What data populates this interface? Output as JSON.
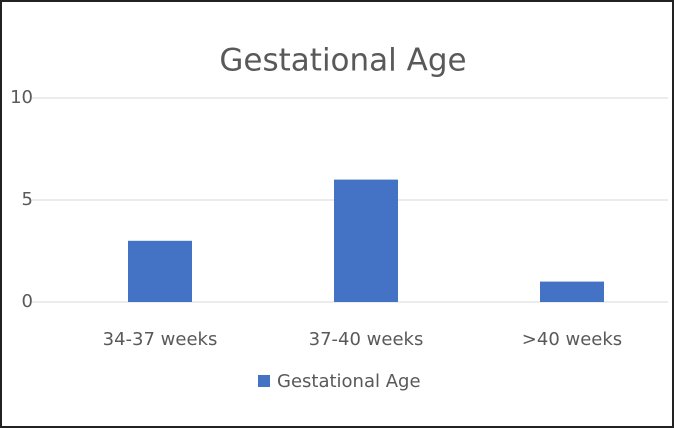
{
  "chart_data": {
    "type": "bar",
    "title": "Gestational Age",
    "categories": [
      "34-37 weeks",
      "37-40 weeks",
      ">40 weeks"
    ],
    "series": [
      {
        "name": "Gestational Age",
        "color": "#4472c4",
        "values": [
          3,
          6,
          1
        ]
      }
    ],
    "ylim": [
      0,
      10
    ],
    "yticks": [
      0,
      5,
      10
    ],
    "grid": true,
    "legend": "bottom"
  }
}
